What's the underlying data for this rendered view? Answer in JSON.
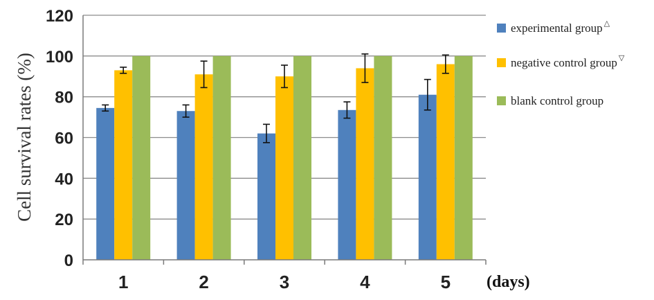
{
  "chart_data": {
    "type": "bar",
    "title": "",
    "xlabel": "(days)",
    "ylabel": "Cell survival rates (%)",
    "ylim": [
      0,
      120
    ],
    "yticks": [
      0,
      20,
      40,
      60,
      80,
      100,
      120
    ],
    "grid": true,
    "legend_position": "right",
    "categories": [
      "1",
      "2",
      "3",
      "4",
      "5"
    ],
    "series": [
      {
        "name": "experimental group",
        "marker": "△",
        "color": "#4f81bd",
        "values": [
          74.5,
          73,
          62,
          73.5,
          81
        ],
        "errors": [
          1.5,
          3,
          4.5,
          4,
          7.5
        ]
      },
      {
        "name": "negative control group",
        "marker": "▽",
        "color": "#ffc000",
        "values": [
          93,
          91,
          90,
          94,
          96
        ],
        "errors": [
          1.5,
          6.5,
          5.5,
          7,
          4.5
        ]
      },
      {
        "name": "blank control group",
        "marker": "",
        "color": "#9bbb59",
        "values": [
          100,
          100,
          100,
          100,
          100
        ],
        "errors": []
      }
    ]
  }
}
